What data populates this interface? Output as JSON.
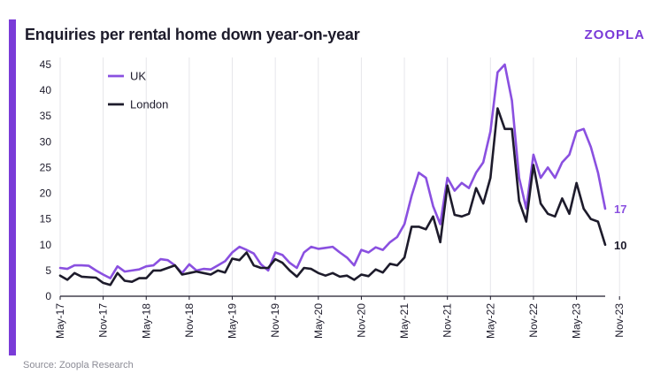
{
  "header": {
    "title": "Enquiries per rental home down year-on-year",
    "brand": "ZOOPLA"
  },
  "footer": {
    "source": "Source: Zoopla Research"
  },
  "colors": {
    "accent": "#7a3bd8",
    "uk": "#8a50e0",
    "london": "#1d1b2b"
  },
  "chart_data": {
    "type": "line",
    "title": "Enquiries per rental home down year-on-year",
    "xlabel": "",
    "ylabel": "",
    "ylim": [
      0,
      45
    ],
    "yticks": [
      0,
      5,
      10,
      15,
      20,
      25,
      30,
      35,
      40,
      45
    ],
    "x_tick_labels": [
      "May-17",
      "Nov-17",
      "May-18",
      "Nov-18",
      "May-19",
      "Nov-19",
      "May-20",
      "Nov-20",
      "May-21",
      "Nov-21",
      "May-22",
      "Nov-22",
      "May-23",
      "Nov-23"
    ],
    "x_start": "May-17",
    "x_end": "Nov-23",
    "grid": "vertical",
    "legend": "top-left",
    "series": [
      {
        "name": "UK",
        "end_label": "17",
        "values": [
          5.5,
          5.3,
          6.0,
          6.0,
          5.9,
          5.0,
          4.2,
          3.5,
          5.8,
          4.8,
          5.0,
          5.2,
          5.8,
          6.0,
          7.2,
          7.0,
          6.0,
          4.5,
          6.2,
          5.0,
          5.3,
          5.2,
          6.0,
          6.8,
          8.5,
          9.6,
          9.0,
          8.3,
          6.2,
          5.0,
          8.5,
          8.0,
          6.5,
          5.5,
          8.5,
          9.6,
          9.2,
          9.4,
          9.6,
          8.5,
          7.5,
          6.0,
          9.0,
          8.5,
          9.5,
          9.0,
          10.5,
          11.5,
          14.0,
          19.5,
          24.0,
          23.0,
          17.5,
          14.0,
          23.0,
          20.5,
          22.0,
          21.0,
          24.0,
          26.0,
          32.0,
          43.5,
          45.0,
          38.0,
          23.0,
          17.0,
          27.5,
          23.0,
          25.0,
          23.0,
          26.0,
          27.5,
          32.0,
          32.5,
          29.0,
          24.0,
          17.0
        ]
      },
      {
        "name": "London",
        "end_label": "10",
        "values": [
          4.0,
          3.2,
          4.5,
          3.8,
          3.7,
          3.6,
          2.6,
          2.2,
          4.5,
          3.0,
          2.8,
          3.5,
          3.5,
          5.0,
          5.0,
          5.5,
          6.0,
          4.2,
          4.5,
          4.8,
          4.5,
          4.2,
          5.0,
          4.6,
          7.3,
          7.0,
          8.5,
          6.0,
          5.5,
          5.5,
          7.2,
          6.5,
          5.0,
          3.8,
          5.5,
          5.3,
          4.5,
          4.0,
          4.5,
          3.8,
          4.0,
          3.2,
          4.2,
          3.9,
          5.2,
          4.6,
          6.3,
          6.0,
          7.5,
          13.5,
          13.5,
          13.0,
          15.5,
          10.5,
          21.5,
          15.8,
          15.5,
          16.0,
          21.0,
          18.0,
          23.0,
          36.5,
          32.5,
          32.5,
          18.5,
          14.5,
          25.5,
          18.0,
          16.0,
          15.5,
          19.0,
          16.0,
          22.0,
          17.0,
          15.0,
          14.5,
          10.0
        ]
      }
    ]
  }
}
